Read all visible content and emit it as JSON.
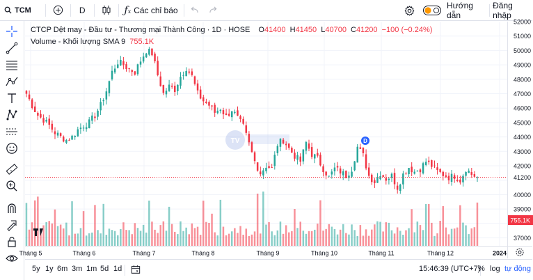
{
  "header": {
    "symbol": "TCM",
    "interval": "D",
    "indicators_label": "Các chỉ báo",
    "guide_label": "Hướng dẫn",
    "login_label": "Đăng nhập"
  },
  "legend": {
    "title": "CTCP Dệt may - Đầu tư - Thương mại Thành Công · 1D · HOSE",
    "open_label": "O",
    "open": "41400",
    "high_label": "H",
    "high": "41450",
    "low_label": "L",
    "low": "40700",
    "close_label": "C",
    "close": "41200",
    "change": "−100 (−0.24%)",
    "volume_label": "Volume - Khối lượng SMA 9",
    "volume_value": "755.1K"
  },
  "price_axis": {
    "ticks": [
      "52000",
      "51000",
      "50000",
      "49000",
      "48000",
      "47000",
      "46000",
      "45000",
      "44000",
      "43000",
      "42000",
      "40000",
      "39000",
      "37000"
    ],
    "last_price": "41200",
    "last_volume": "755.1K"
  },
  "time_axis": {
    "labels": [
      "Tháng 5",
      "Tháng 6",
      "Tháng 7",
      "Tháng 8",
      "Tháng 9",
      "Tháng 10",
      "Tháng 11",
      "Tháng 12",
      "2024"
    ]
  },
  "bottom": {
    "ranges": [
      "5y",
      "1y",
      "6m",
      "3m",
      "1m",
      "5d",
      "1d"
    ],
    "clock": "15:46:39 (UTC+7)",
    "pct": "%",
    "log": "log",
    "auto": "tự động"
  },
  "badge": {
    "dividend": "D"
  },
  "watermark": {
    "logo": "TV"
  },
  "colors": {
    "up": "#26a69a",
    "down": "#f23645",
    "accent": "#2962ff",
    "text": "#131722",
    "axis": "#787b86"
  },
  "chart_data": {
    "type": "candlestick",
    "price_range": [
      36000,
      52000
    ],
    "last_price": 41200,
    "months": [
      "Tháng 5",
      "Tháng 6",
      "Tháng 7",
      "Tháng 8",
      "Tháng 9",
      "Tháng 10",
      "Tháng 11",
      "Tháng 12",
      "2024"
    ],
    "close_path": [
      [
        0,
        47000
      ],
      [
        4,
        46200
      ],
      [
        8,
        45500
      ],
      [
        12,
        45200
      ],
      [
        16,
        44800
      ],
      [
        20,
        44300
      ],
      [
        24,
        44000
      ],
      [
        28,
        43800
      ],
      [
        32,
        44000
      ],
      [
        36,
        44500
      ],
      [
        40,
        44800
      ],
      [
        44,
        45000
      ],
      [
        48,
        45500
      ],
      [
        52,
        46200
      ],
      [
        56,
        47200
      ],
      [
        60,
        48500
      ],
      [
        64,
        49200
      ],
      [
        68,
        49000
      ],
      [
        72,
        48700
      ],
      [
        76,
        48500
      ],
      [
        80,
        49300
      ],
      [
        84,
        50000
      ],
      [
        88,
        49800
      ],
      [
        92,
        48300
      ],
      [
        96,
        47000
      ],
      [
        100,
        47500
      ],
      [
        104,
        47300
      ],
      [
        108,
        48200
      ],
      [
        112,
        48800
      ],
      [
        116,
        48200
      ],
      [
        120,
        47000
      ],
      [
        124,
        46500
      ],
      [
        128,
        46200
      ],
      [
        132,
        45700
      ],
      [
        136,
        46000
      ],
      [
        140,
        45400
      ],
      [
        144,
        45900
      ],
      [
        148,
        45300
      ],
      [
        152,
        44700
      ],
      [
        156,
        43500
      ],
      [
        160,
        42300
      ],
      [
        164,
        41500
      ],
      [
        168,
        42000
      ],
      [
        172,
        41800
      ],
      [
        176,
        43500
      ],
      [
        180,
        43800
      ],
      [
        184,
        43200
      ],
      [
        188,
        42700
      ],
      [
        192,
        42300
      ],
      [
        196,
        43600
      ],
      [
        200,
        42800
      ],
      [
        204,
        42500
      ],
      [
        208,
        41800
      ],
      [
        212,
        41200
      ],
      [
        216,
        41800
      ],
      [
        220,
        41600
      ],
      [
        224,
        41300
      ],
      [
        228,
        41800
      ],
      [
        232,
        43300
      ],
      [
        236,
        42700
      ],
      [
        240,
        41300
      ],
      [
        244,
        40900
      ],
      [
        248,
        41500
      ],
      [
        252,
        41100
      ],
      [
        256,
        41300
      ],
      [
        260,
        40500
      ],
      [
        264,
        41400
      ],
      [
        268,
        41900
      ],
      [
        272,
        41600
      ],
      [
        276,
        41800
      ],
      [
        280,
        42300
      ],
      [
        284,
        42000
      ],
      [
        288,
        41600
      ],
      [
        292,
        41400
      ],
      [
        296,
        41200
      ],
      [
        300,
        41300
      ],
      [
        304,
        41000
      ],
      [
        308,
        41800
      ],
      [
        312,
        41400
      ],
      [
        316,
        41200
      ]
    ],
    "volume_bar_count": 158,
    "latest_candle": {
      "open": 41400,
      "high": 41450,
      "low": 40700,
      "close": 41200,
      "volume": "755.1K"
    }
  }
}
